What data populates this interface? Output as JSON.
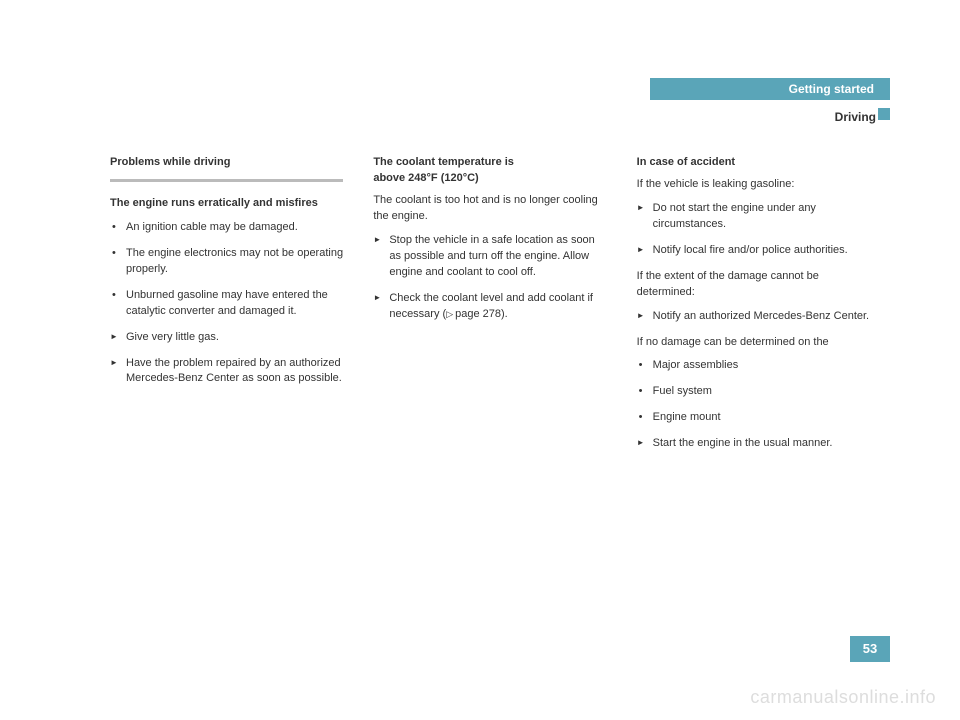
{
  "header": {
    "chapter": "Getting started",
    "section": "Driving",
    "accent_color": "#5aa5b8"
  },
  "page_number": "53",
  "watermark": "carmanualsonline.info",
  "col1": {
    "title": "Problems while driving",
    "subtitle": "The engine runs erratically and misfires",
    "bullets": [
      "An ignition cable may be damaged.",
      "The engine electronics may not be operating properly.",
      "Unburned gasoline may have entered the catalytic converter and damaged it."
    ],
    "arrows": [
      "Give very little gas.",
      "Have the problem repaired by an authorized Mercedes-Benz Center as soon as possible."
    ]
  },
  "col2": {
    "title1": "The coolant temperature is",
    "title2": "above 248°F (120°C)",
    "para": "The coolant is too hot and is no longer cooling the engine.",
    "arrow1": "Stop the vehicle in a safe location as soon as possible and turn off the engine. Allow engine and coolant to cool off.",
    "arrow2a": "Check the coolant level and add coolant if necessary (",
    "page_ref": "page 278",
    "arrow2b": ")."
  },
  "col3": {
    "title": "In case of accident",
    "para1": "If the vehicle is leaking gasoline:",
    "arrows1": [
      "Do not start the engine under any circumstances.",
      "Notify local fire and/or police authorities."
    ],
    "para2": "If the extent of the damage cannot be determined:",
    "arrows2": [
      "Notify an authorized Mercedes-Benz Center."
    ],
    "para3": "If no damage can be determined on the",
    "bullets": [
      "Major assemblies",
      "Fuel system",
      "Engine mount"
    ],
    "arrows3": [
      "Start the engine in the usual manner."
    ]
  }
}
